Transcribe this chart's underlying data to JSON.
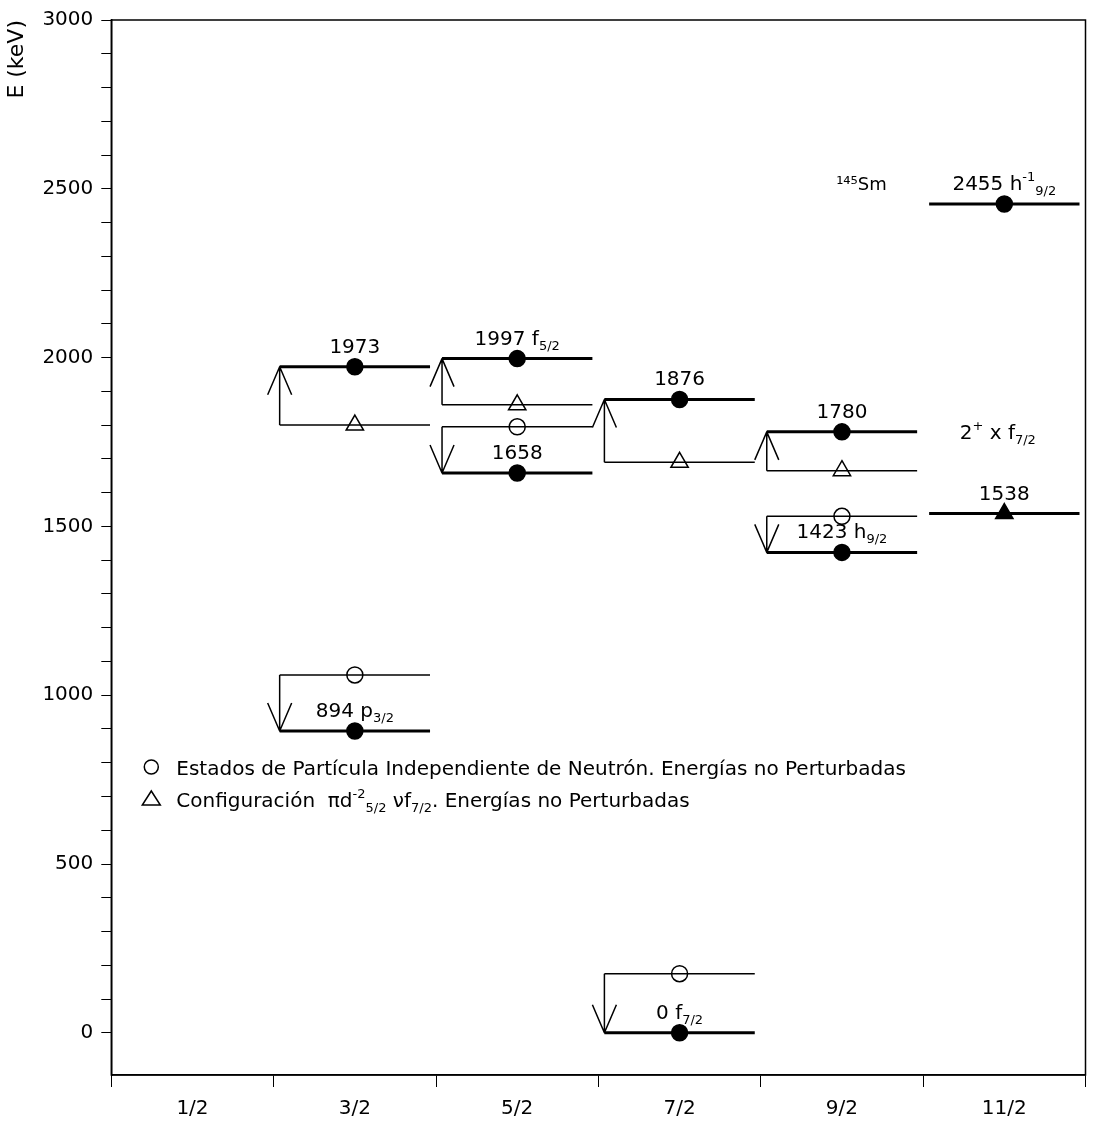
{
  "chart_data": {
    "type": "scatter",
    "ylabel": "E (keV)",
    "categories": [
      "1/2",
      "3/2",
      "5/2",
      "7/2",
      "9/2",
      "11/2"
    ],
    "ylim": [
      -125,
      3000
    ],
    "yticks": [
      0,
      {
        "value": 100,
        "label": null
      },
      {
        "value": 200,
        "label": null
      },
      {
        "value": 300,
        "label": null
      },
      {
        "value": 400,
        "label": null
      },
      500,
      {
        "value": 600,
        "label": null
      },
      {
        "value": 700,
        "label": null
      },
      {
        "value": 800,
        "label": null
      },
      {
        "value": 900,
        "label": null
      },
      1000,
      {
        "value": 1100,
        "label": null
      },
      {
        "value": 1200,
        "label": null
      },
      {
        "value": 1300,
        "label": null
      },
      {
        "value": 1400,
        "label": null
      },
      1500,
      {
        "value": 1600,
        "label": null
      },
      {
        "value": 1700,
        "label": null
      },
      {
        "value": 1800,
        "label": null
      },
      {
        "value": 1900,
        "label": null
      },
      2000,
      {
        "value": 2100,
        "label": null
      },
      {
        "value": 2200,
        "label": null
      },
      {
        "value": 2300,
        "label": null
      },
      {
        "value": 2400,
        "label": null
      },
      2500,
      {
        "value": 2600,
        "label": null
      },
      {
        "value": 2700,
        "label": null
      },
      {
        "value": 2800,
        "label": null
      },
      {
        "value": 2900,
        "label": null
      },
      3000
    ],
    "grid": false,
    "legend": "bottom left",
    "series": [
      {
        "color": "#000000",
        "marker": "circle",
        "x": [
          "3/2",
          "3/2",
          "5/2",
          "5/2",
          "7/2",
          "7/2",
          "9/2",
          "9/2",
          "11/2"
        ],
        "values": [
          894,
          1973,
          1658,
          1997,
          0,
          1876,
          1423,
          1780,
          2455
        ],
        "value_labels": [
          "894 p$_{3/2}$",
          "1973",
          "1658",
          "1997 f$_{5/2}$",
          "0 f$_{7/2}$",
          "1876",
          "1423 h$_{9/2}$",
          "1780",
          "2455 h$^{-1}$$_{9/2}$"
        ]
      },
      {
        "name": "Estados de Partícula Independiente de Neutrón. Energías no Perturbadas",
        "color": "#ffffff",
        "marker": "circle",
        "x": [
          "3/2",
          "5/2",
          "7/2",
          "9/2"
        ],
        "values": [
          1060,
          1795,
          175,
          1530
        ]
      },
      {
        "name": "Configuración  πd$^{-2}$$_{5/2}$ νf$_{7/2}$. Energías no Perturbadas",
        "color": "#ffffff",
        "marker": "triangle",
        "x": [
          "3/2",
          "5/2",
          "7/2",
          "9/2"
        ],
        "values": [
          1800,
          1860,
          1690,
          1665
        ]
      },
      {
        "color": "#000000",
        "marker": "triangle",
        "x": [
          "11/2"
        ],
        "values": [
          1538
        ],
        "value_labels": [
          "1538"
        ]
      }
    ],
    "annotations": [
      "¹⁴⁵Sm",
      "2$^{+}$ x f$_{7/2}$"
    ]
  }
}
